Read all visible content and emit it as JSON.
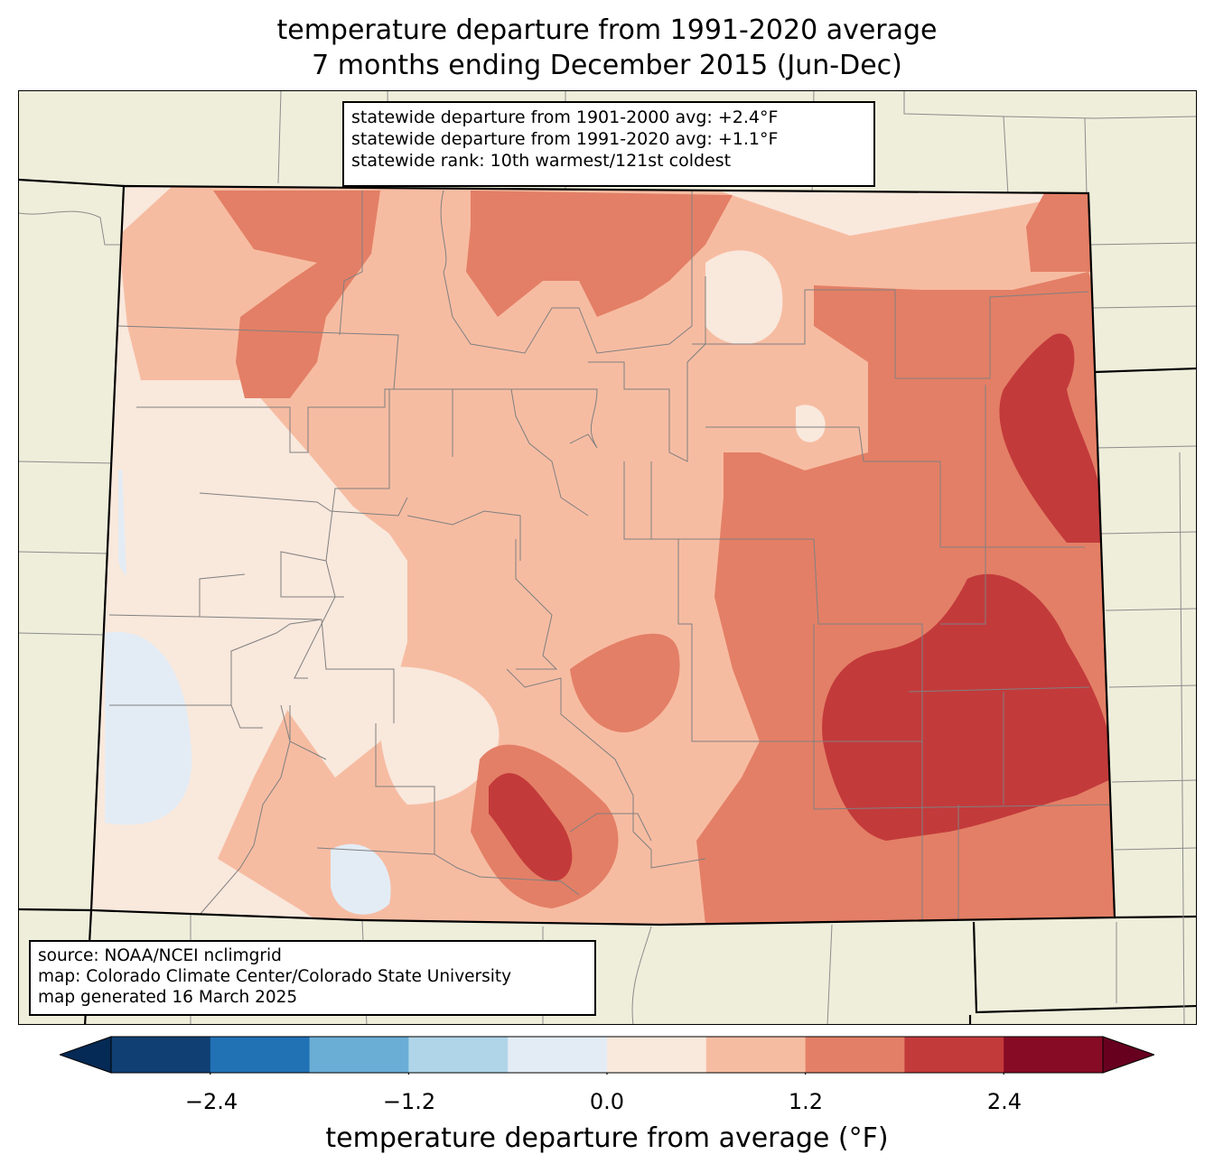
{
  "title": {
    "line1": "temperature departure from 1991-2020 average",
    "line2": "7 months ending December 2015 (Jun-Dec)"
  },
  "stats": {
    "line1": "statewide departure from 1901-2000 avg: +2.4°F",
    "line2": "statewide departure from 1991-2020 avg: +1.1°F",
    "line3": "statewide rank: 10th warmest/121st coldest"
  },
  "source": {
    "line1": "source: NOAA/NCEI nclimgrid",
    "line2": "map: Colorado Climate Center/Colorado State University",
    "line3": "map generated 16 March 2025"
  },
  "colorbar": {
    "label": "temperature departure from average (°F)",
    "ticks": [
      "−2.4",
      "−1.2",
      "0.0",
      "1.2",
      "2.4"
    ],
    "levels": [
      -3.0,
      -2.4,
      -1.8,
      -1.2,
      -0.6,
      0.0,
      0.6,
      1.2,
      1.8,
      2.4,
      3.0
    ],
    "colors": [
      "#0f3f73",
      "#2171b5",
      "#6aaed6",
      "#b0d5e8",
      "#e3ecf5",
      "#f9e8dc",
      "#f6bca2",
      "#e37f66",
      "#c33a3b",
      "#870b24"
    ],
    "under_color": "#052a55",
    "over_color": "#67001f"
  },
  "colors": {
    "land": "#efeedb",
    "boundary": "#000000",
    "county_line": "#808080"
  }
}
